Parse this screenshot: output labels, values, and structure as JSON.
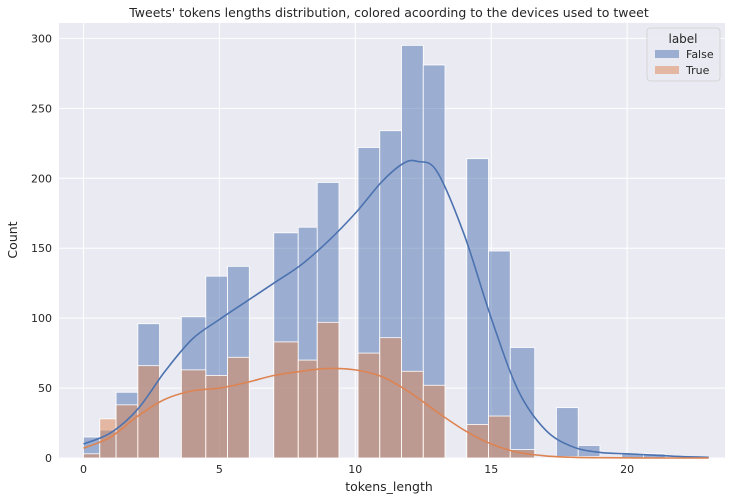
{
  "chart_data": {
    "type": "histogram",
    "title": "Tweets' tokens lengths distribution, colored acoording to the devices used to tweet",
    "xlabel": "tokens_length",
    "ylabel": "Count",
    "xlim": [
      -0.9,
      23.6
    ],
    "ylim": [
      0,
      311
    ],
    "xticks": [
      0,
      5,
      10,
      15,
      20
    ],
    "yticks": [
      0,
      50,
      100,
      150,
      200,
      250,
      300
    ],
    "grid": true,
    "background": "#eaeaf2",
    "bin_edges": [
      0,
      0.6,
      1.2,
      2.0,
      2.8,
      3.6,
      4.5,
      5.3,
      6.1,
      7.0,
      7.9,
      8.6,
      9.4,
      10.1,
      10.9,
      11.7,
      12.5,
      13.3,
      14.1,
      14.9,
      15.7,
      16.6,
      17.4,
      18.2,
      19.0,
      19.8,
      20.6,
      21.4,
      22.2,
      23.0
    ],
    "series": [
      {
        "name": "False",
        "color": "#4c72b0",
        "counts": [
          15,
          20,
          47,
          96,
          0,
          101,
          130,
          137,
          0,
          161,
          165,
          197,
          0,
          222,
          234,
          295,
          281,
          0,
          214,
          148,
          79,
          0,
          36,
          9,
          0,
          3,
          3,
          0,
          0
        ],
        "kde": [
          [
            0,
            10
          ],
          [
            1,
            18
          ],
          [
            2,
            35
          ],
          [
            3,
            62
          ],
          [
            4,
            85
          ],
          [
            5,
            99
          ],
          [
            6,
            112
          ],
          [
            7,
            125
          ],
          [
            8,
            138
          ],
          [
            9,
            155
          ],
          [
            10,
            175
          ],
          [
            11,
            198
          ],
          [
            11.8,
            211
          ],
          [
            12.3,
            212
          ],
          [
            13,
            205
          ],
          [
            14,
            160
          ],
          [
            15,
            100
          ],
          [
            16,
            48
          ],
          [
            17,
            20
          ],
          [
            18,
            8
          ],
          [
            19,
            4
          ],
          [
            20,
            3
          ],
          [
            21,
            2
          ],
          [
            22,
            1
          ],
          [
            23,
            0.5
          ]
        ]
      },
      {
        "name": "True",
        "color": "#dd8452",
        "counts": [
          3,
          28,
          38,
          66,
          0,
          63,
          59,
          72,
          0,
          83,
          70,
          97,
          0,
          75,
          86,
          62,
          52,
          0,
          24,
          30,
          6,
          0,
          1,
          1,
          0,
          0,
          0,
          0,
          0
        ],
        "kde": [
          [
            0,
            7
          ],
          [
            1,
            15
          ],
          [
            2,
            30
          ],
          [
            3,
            42
          ],
          [
            4,
            48
          ],
          [
            5,
            50
          ],
          [
            6,
            54
          ],
          [
            7,
            59
          ],
          [
            8,
            62
          ],
          [
            9,
            64
          ],
          [
            10,
            63
          ],
          [
            11,
            58
          ],
          [
            12,
            47
          ],
          [
            13,
            33
          ],
          [
            14,
            20
          ],
          [
            15,
            10
          ],
          [
            16,
            4
          ],
          [
            17,
            1.5
          ],
          [
            18,
            0.5
          ],
          [
            19,
            0.2
          ],
          [
            20,
            0.1
          ],
          [
            21,
            0
          ],
          [
            22,
            0
          ],
          [
            23,
            0
          ]
        ]
      }
    ],
    "legend": {
      "title": "label",
      "placement": "top-right",
      "entries": [
        "False",
        "True"
      ]
    }
  }
}
